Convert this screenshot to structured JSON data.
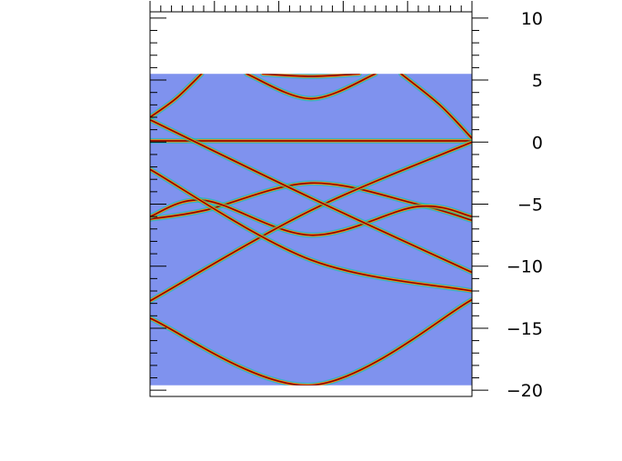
{
  "chart_data": {
    "type": "heatmap",
    "title": "",
    "xlabel": "",
    "ylabel": "",
    "ylim": [
      -20.5,
      10.5
    ],
    "data_extent_y": [
      -19.6,
      5.5
    ],
    "yticks_major": [
      10,
      5,
      0,
      -5,
      -10,
      -15,
      -20
    ],
    "ytick_labels": [
      "10",
      "5",
      "0",
      "−5",
      "−10",
      "−15",
      "−20"
    ],
    "x_tick_labels": [],
    "grid": false,
    "legend": "none",
    "colors": {
      "background": "#7f92ee",
      "band_core": "#8b0000",
      "band_mid": "#ff8c00",
      "band_glow": "#00c8a0"
    },
    "bands": [
      {
        "name": "",
        "k": [
          0.3,
          0.5,
          0.7
        ],
        "E": [
          5.5,
          3.5,
          5.5
        ]
      },
      {
        "name": "",
        "k": [
          0.35,
          0.5,
          0.65
        ],
        "E": [
          5.5,
          5.3,
          5.5
        ]
      },
      {
        "name": "",
        "k": [
          0.0,
          0.5,
          1.0
        ],
        "E": [
          0.1,
          0.1,
          0.1
        ]
      },
      {
        "name": "",
        "k": [
          0.0,
          0.17,
          0.5,
          0.83,
          1.0
        ],
        "E": [
          -6.2,
          -5.5,
          -3.3,
          -5.0,
          -6.3
        ]
      },
      {
        "name": "",
        "k": [
          0.0,
          0.17,
          0.5,
          0.83,
          1.0
        ],
        "E": [
          -6.0,
          -4.7,
          -7.5,
          -5.2,
          -6.0
        ]
      },
      {
        "name": "",
        "k": [
          0.0,
          0.5,
          1.0
        ],
        "E": [
          -14.2,
          -19.6,
          -12.7
        ]
      },
      {
        "name": "",
        "k": [
          0.0,
          0.5,
          1.0
        ],
        "E": [
          -12.8,
          -5.5,
          0.0
        ]
      },
      {
        "name": "",
        "k": [
          0.0,
          0.5,
          1.0
        ],
        "E": [
          -2.2,
          -9.5,
          -12.0
        ]
      },
      {
        "name": "",
        "k": [
          0.0,
          0.5,
          1.0
        ],
        "E": [
          1.8,
          -4.5,
          -10.5
        ]
      },
      {
        "name": "",
        "k": [
          0.0,
          0.08,
          0.16
        ],
        "E": [
          2.0,
          3.5,
          5.5
        ]
      },
      {
        "name": "",
        "k": [
          0.78,
          0.9,
          1.0
        ],
        "E": [
          5.5,
          3.0,
          0.3
        ]
      }
    ]
  }
}
